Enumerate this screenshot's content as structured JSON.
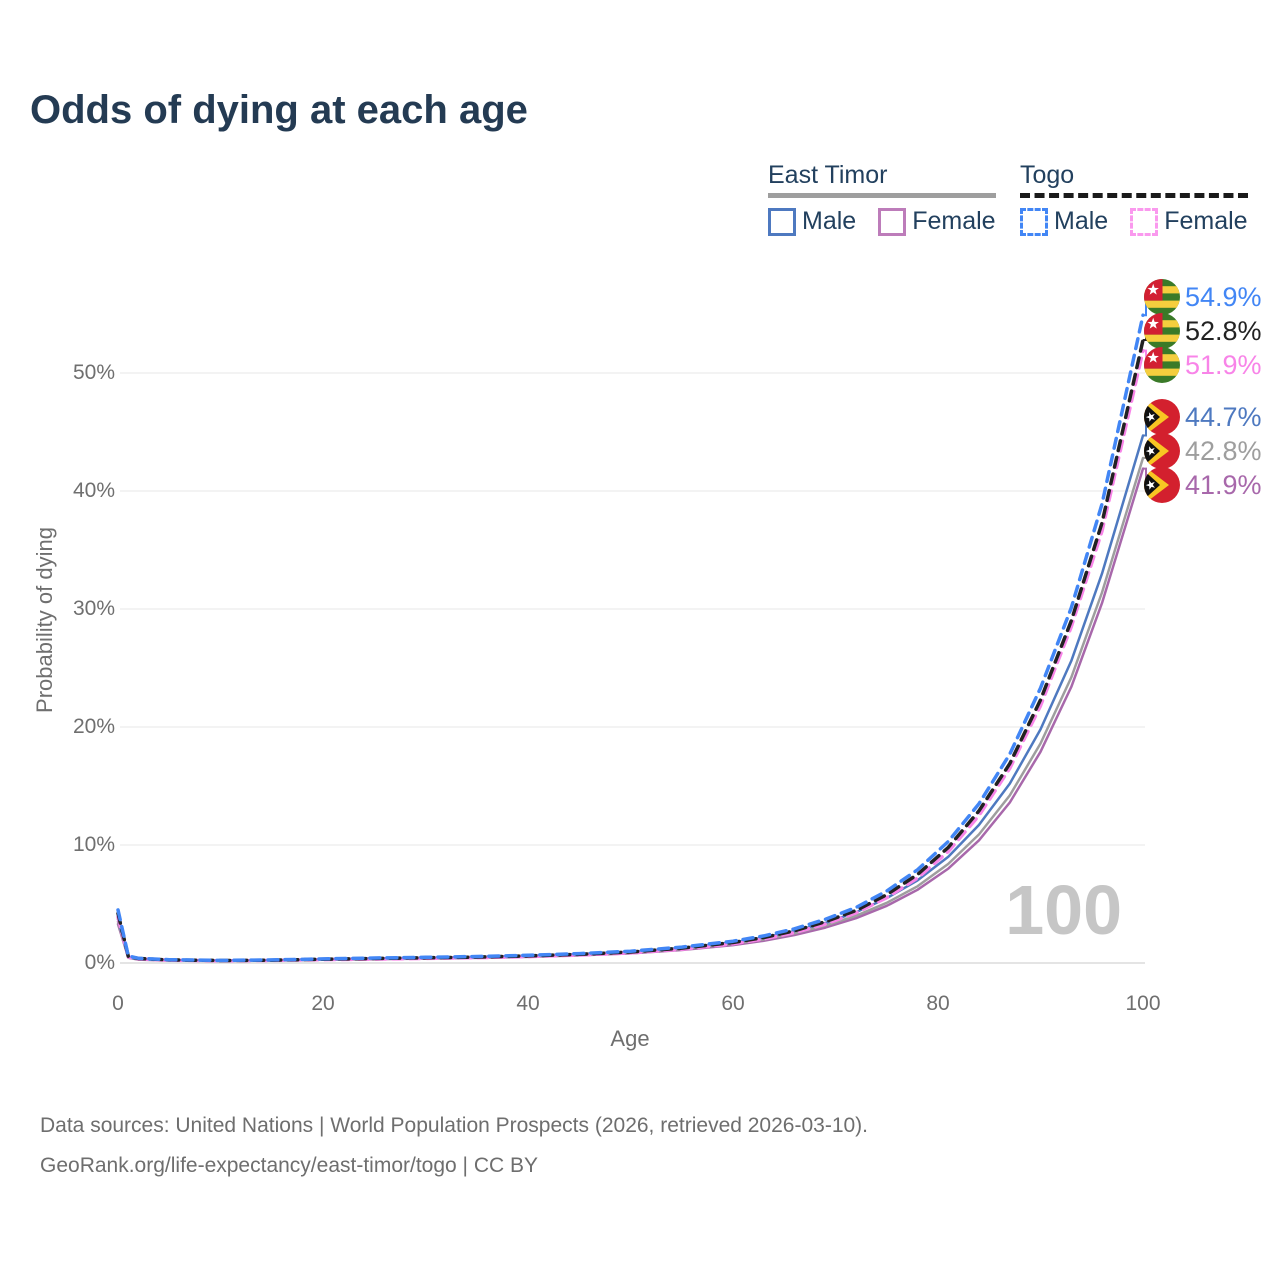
{
  "title": "Odds of dying at each age",
  "legend": {
    "groups": [
      {
        "name": "East Timor",
        "line_style": "solid",
        "items": [
          {
            "label": "Male",
            "color": "#4e79c0"
          },
          {
            "label": "Female",
            "color": "#bd7cba"
          }
        ]
      },
      {
        "name": "Togo",
        "line_style": "dashed",
        "items": [
          {
            "label": "Male",
            "color": "#4286f5"
          },
          {
            "label": "Female",
            "color": "#fa99ee"
          }
        ]
      }
    ]
  },
  "watermark": "100",
  "footer": {
    "line1": "Data sources: United Nations | World Population Prospects (2026, retrieved 2026-03-10).",
    "line2": "GeoRank.org/life-expectancy/east-timor/togo | CC BY"
  },
  "chart_data": {
    "type": "line",
    "title": "Odds of dying at each age",
    "xlabel": "Age",
    "ylabel": "Probability of dying",
    "xlim": [
      0,
      100
    ],
    "ylim": [
      0,
      57
    ],
    "x_ticks": [
      "0",
      "20",
      "40",
      "60",
      "80",
      "100"
    ],
    "y_ticks": [
      "0%",
      "10%",
      "20%",
      "30%",
      "40%",
      "50%"
    ],
    "grid": "horizontal",
    "legend_position": "top-right",
    "ages": [
      0,
      1,
      2,
      5,
      10,
      15,
      20,
      25,
      30,
      35,
      40,
      45,
      50,
      55,
      60,
      63,
      66,
      69,
      72,
      75,
      78,
      81,
      84,
      87,
      90,
      93,
      96,
      100
    ],
    "series": [
      {
        "name": "Togo Male",
        "country": "Togo",
        "sex": "Male",
        "flag": "togo",
        "color": "#4286f5",
        "dashed": true,
        "label": "54.9%",
        "end_value": 54.9,
        "values": [
          4.5,
          0.6,
          0.4,
          0.28,
          0.22,
          0.26,
          0.35,
          0.42,
          0.48,
          0.55,
          0.65,
          0.8,
          1.0,
          1.35,
          1.85,
          2.3,
          2.9,
          3.7,
          4.7,
          6.1,
          7.9,
          10.3,
          13.5,
          17.7,
          23.3,
          30.1,
          38.9,
          54.9
        ]
      },
      {
        "name": "Togo Both sexes",
        "country": "Togo",
        "sex": "Both",
        "flag": "togo",
        "color": "#222222",
        "dashed": true,
        "label": "52.8%",
        "end_value": 52.8,
        "values": [
          4.2,
          0.56,
          0.38,
          0.26,
          0.21,
          0.24,
          0.32,
          0.38,
          0.44,
          0.5,
          0.6,
          0.74,
          0.93,
          1.26,
          1.74,
          2.16,
          2.73,
          3.5,
          4.45,
          5.8,
          7.5,
          9.8,
          12.9,
          16.9,
          22.3,
          29.0,
          37.3,
          52.8
        ]
      },
      {
        "name": "Togo Female",
        "country": "Togo",
        "sex": "Female",
        "flag": "togo",
        "color": "#f884e8",
        "dashed": true,
        "label": "51.9%",
        "end_value": 51.9,
        "values": [
          3.9,
          0.52,
          0.35,
          0.24,
          0.19,
          0.22,
          0.28,
          0.33,
          0.39,
          0.45,
          0.54,
          0.68,
          0.86,
          1.17,
          1.63,
          2.04,
          2.58,
          3.3,
          4.25,
          5.55,
          7.2,
          9.45,
          12.5,
          16.5,
          21.8,
          28.5,
          36.6,
          51.9
        ]
      },
      {
        "name": "East Timor Male",
        "country": "East Timor",
        "sex": "Male",
        "flag": "east-timor",
        "color": "#4e79c0",
        "dashed": false,
        "label": "44.7%",
        "end_value": 44.7,
        "values": [
          3.7,
          0.5,
          0.33,
          0.24,
          0.2,
          0.24,
          0.33,
          0.4,
          0.45,
          0.52,
          0.62,
          0.76,
          0.95,
          1.28,
          1.75,
          2.15,
          2.7,
          3.4,
          4.3,
          5.5,
          7.0,
          9.0,
          11.7,
          15.2,
          19.8,
          25.6,
          33.0,
          44.7
        ]
      },
      {
        "name": "East Timor Both sexes",
        "country": "East Timor",
        "sex": "Both",
        "flag": "east-timor",
        "color": "#9e9e9e",
        "dashed": false,
        "label": "42.8%",
        "end_value": 42.8,
        "values": [
          3.5,
          0.47,
          0.31,
          0.22,
          0.18,
          0.22,
          0.3,
          0.36,
          0.41,
          0.48,
          0.57,
          0.7,
          0.88,
          1.19,
          1.63,
          2.0,
          2.52,
          3.18,
          4.0,
          5.1,
          6.5,
          8.4,
          10.9,
          14.2,
          18.6,
          24.2,
          31.4,
          42.8
        ]
      },
      {
        "name": "East Timor Female",
        "country": "East Timor",
        "sex": "Female",
        "flag": "east-timor",
        "color": "#a868ab",
        "dashed": false,
        "label": "41.9%",
        "end_value": 41.9,
        "values": [
          3.3,
          0.44,
          0.29,
          0.2,
          0.17,
          0.2,
          0.27,
          0.32,
          0.37,
          0.43,
          0.52,
          0.64,
          0.81,
          1.1,
          1.52,
          1.88,
          2.37,
          3.0,
          3.8,
          4.85,
          6.2,
          8.0,
          10.4,
          13.6,
          17.9,
          23.4,
          30.5,
          41.9
        ]
      }
    ]
  }
}
